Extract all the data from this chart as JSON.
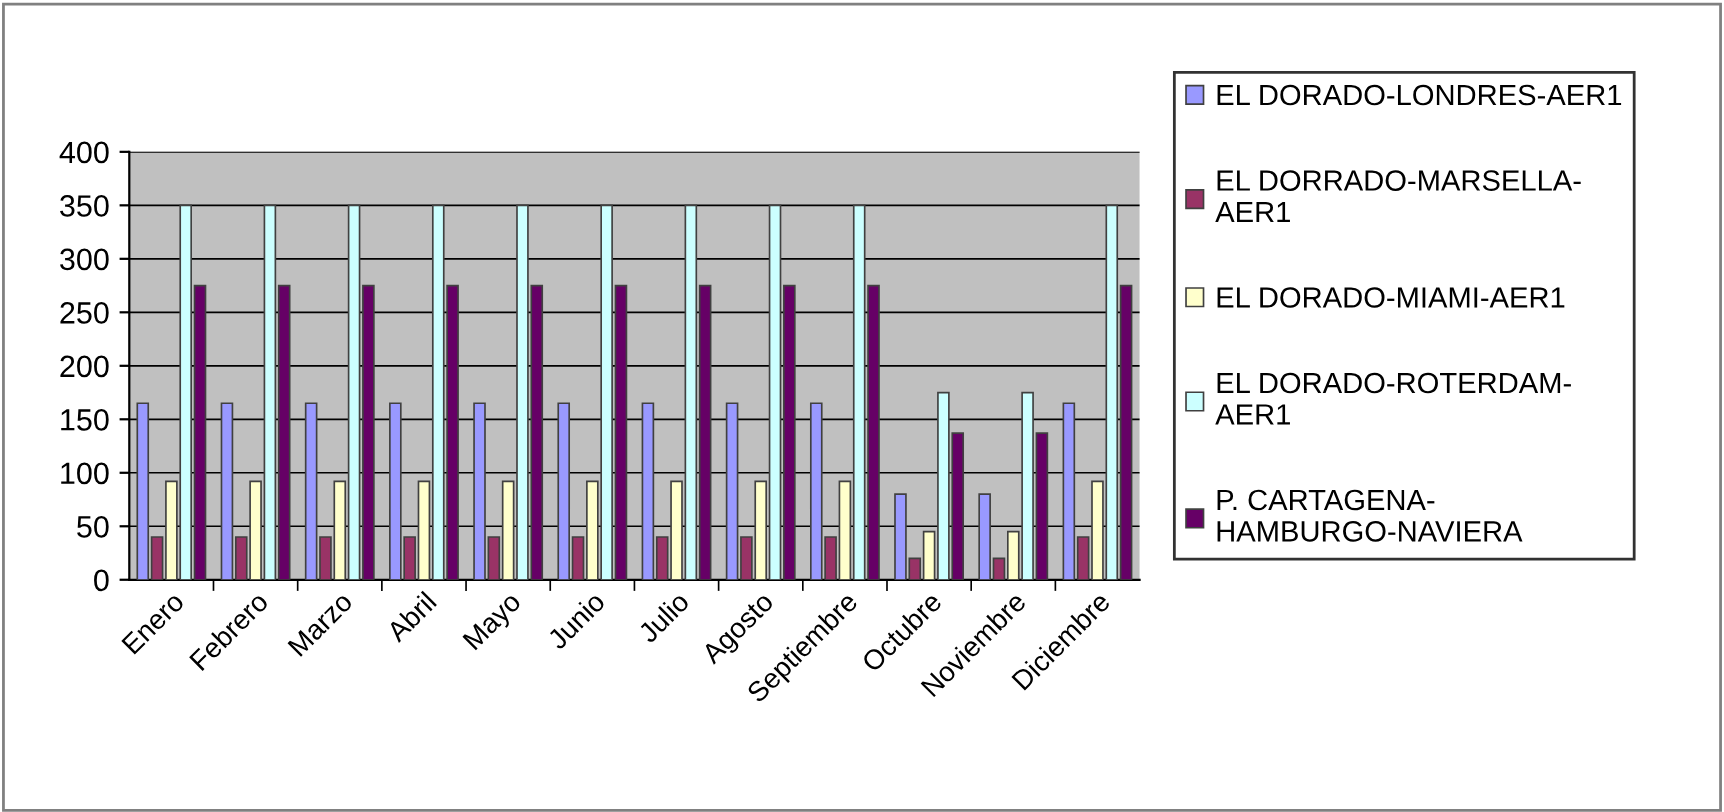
{
  "chart_data": {
    "type": "bar",
    "categories": [
      "Enero",
      "Febrero",
      "Marzo",
      "Abril",
      "Mayo",
      "Junio",
      "Julio",
      "Agosto",
      "Septiembre",
      "Octubre",
      "Noviembre",
      "Diciembre"
    ],
    "series": [
      {
        "name": "EL DORADO-LONDRES-AER1",
        "color": "#9999ff",
        "values": [
          165,
          165,
          165,
          165,
          165,
          165,
          165,
          165,
          165,
          80,
          80,
          165
        ]
      },
      {
        "name": "EL DORRADO-MARSELLA-\nAER1",
        "color": "#993366",
        "values": [
          40,
          40,
          40,
          40,
          40,
          40,
          40,
          40,
          40,
          20,
          20,
          40
        ]
      },
      {
        "name": "EL DORADO-MIAMI-AER1",
        "color": "#ffffcc",
        "values": [
          92,
          92,
          92,
          92,
          92,
          92,
          92,
          92,
          92,
          45,
          45,
          92
        ]
      },
      {
        "name": "EL DORADO-ROTERDAM-\nAER1",
        "color": "#ccffff",
        "values": [
          350,
          350,
          350,
          350,
          350,
          350,
          350,
          350,
          350,
          175,
          175,
          350
        ]
      },
      {
        "name": "P. CARTAGENA-\nHAMBURGO-NAVIERA",
        "color": "#660066",
        "values": [
          275,
          275,
          275,
          275,
          275,
          275,
          275,
          275,
          275,
          137,
          137,
          275
        ]
      }
    ],
    "ylim": [
      0,
      400
    ],
    "yticks": [
      0,
      50,
      100,
      150,
      200,
      250,
      300,
      350,
      400
    ],
    "grid": "y",
    "legend": "right"
  }
}
